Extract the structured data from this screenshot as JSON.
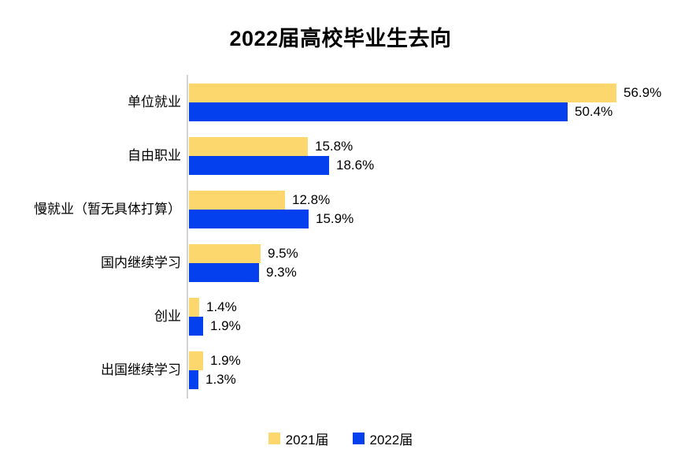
{
  "chart_data": {
    "type": "bar",
    "orientation": "horizontal",
    "title": "2022届高校毕业生去向",
    "categories": [
      "单位就业",
      "自由职业",
      "慢就业（暂无具体打算）",
      "国内继续学习",
      "创业",
      "出国继续学习"
    ],
    "series": [
      {
        "name": "2021届",
        "color": "#FCD76D",
        "values": [
          56.9,
          15.8,
          12.8,
          9.5,
          1.4,
          1.9
        ]
      },
      {
        "name": "2022届",
        "color": "#0540EE",
        "values": [
          50.4,
          18.6,
          15.9,
          9.3,
          1.9,
          1.3
        ]
      }
    ],
    "value_suffix": "%",
    "xlim": [
      0,
      60
    ],
    "grid": false,
    "legend_position": "bottom",
    "axis_line_color": "#D4D4D4",
    "text_color": "#000000",
    "background": "#FFFFFF"
  }
}
